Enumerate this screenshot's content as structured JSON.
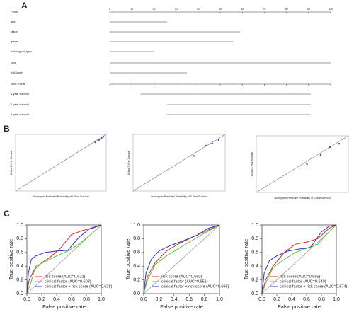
{
  "panel_labels": [
    "A",
    "B",
    "C"
  ],
  "chart_data": [
    {
      "type": "nomogram",
      "xlim": [
        0,
        100
      ],
      "xticks": [
        0,
        10,
        20,
        30,
        40,
        50,
        60,
        70,
        80,
        90,
        100
      ],
      "rows": [
        {
          "label": "Points",
          "range": [
            0,
            100
          ]
        },
        {
          "label": "age",
          "range": [
            0,
            26
          ]
        },
        {
          "label": "stage",
          "range": [
            0,
            59
          ]
        },
        {
          "label": "grade",
          "range": [
            0,
            56
          ]
        },
        {
          "label": "histological_type",
          "range": [
            0,
            20
          ]
        },
        {
          "label": "race",
          "range": [
            0,
            100
          ]
        },
        {
          "label": "riskScore",
          "range": [
            0,
            35
          ]
        },
        {
          "label": "Total Points",
          "range": [
            0,
            100
          ]
        },
        {
          "label": "1-year survival",
          "range": [
            14,
            91
          ]
        },
        {
          "label": "3-year survival",
          "range": [
            26,
            91
          ]
        },
        {
          "label": "5-year survival",
          "range": [
            26,
            91
          ]
        }
      ]
    },
    {
      "type": "scatter",
      "xlabel": "Nomogram-Predicted Probability of 1-Year Survival",
      "ylabel": "Actual 1-Year Survival",
      "xlim": [
        0,
        1
      ],
      "ylim": [
        0,
        1
      ],
      "color": "#3b4cc0",
      "x": [
        0.88,
        0.92,
        0.95,
        0.97
      ],
      "values": [
        0.86,
        0.9,
        0.94,
        0.96
      ]
    },
    {
      "type": "scatter",
      "xlabel": "Nomogram-Predicted Probability of 3-Year Survival",
      "ylabel": "Actual 3-Year Survival",
      "xlim": [
        0,
        1
      ],
      "ylim": [
        0,
        1
      ],
      "color": "#3b4cc0",
      "x": [
        0.66,
        0.79,
        0.86,
        0.93
      ],
      "values": [
        0.62,
        0.8,
        0.84,
        0.9
      ]
    },
    {
      "type": "scatter",
      "xlabel": "Nomogram-Predicted Probability of 5-Year Survival",
      "ylabel": "Actual 5-Year Survival",
      "xlim": [
        0,
        1
      ],
      "ylim": [
        0,
        1
      ],
      "color": "#3b4cc0",
      "x": [
        0.55,
        0.7,
        0.8,
        0.9
      ],
      "values": [
        0.5,
        0.66,
        0.8,
        0.86
      ]
    },
    {
      "type": "roc",
      "xlabel": "False positive rate",
      "ylabel": "True positive rate",
      "xlim": [
        0,
        1
      ],
      "ylim": [
        0,
        1
      ],
      "xticks": [
        {
          "value": 0,
          "label": "0.0"
        },
        {
          "value": 0.2,
          "label": "0.2"
        },
        {
          "value": 0.4,
          "label": "0.4"
        },
        {
          "value": 0.6,
          "label": "0.6"
        },
        {
          "value": 0.8,
          "label": "0.8"
        },
        {
          "value": 1,
          "label": "1.0"
        }
      ],
      "yticks": [
        {
          "value": 0,
          "label": "0.0"
        },
        {
          "value": 0.2,
          "label": "0.2"
        },
        {
          "value": 0.4,
          "label": "0.4"
        },
        {
          "value": 0.6,
          "label": "0.6"
        },
        {
          "value": 0.8,
          "label": "0.8"
        },
        {
          "value": 1,
          "label": "1.0"
        }
      ],
      "series": [
        {
          "name": "risk score (AUC=0.632)",
          "color": "#e8262a",
          "x": [
            0,
            0.03,
            0.1,
            0.2,
            0.3,
            0.45,
            0.6,
            0.75,
            0.9,
            1
          ],
          "values": [
            0,
            0.2,
            0.35,
            0.45,
            0.52,
            0.66,
            0.86,
            0.92,
            0.96,
            1
          ]
        },
        {
          "name": "clinical factor (AUC=0.603)",
          "color": "#4cc93c",
          "x": [
            0,
            0.05,
            0.12,
            0.25,
            0.4,
            0.55,
            0.7,
            0.85,
            1
          ],
          "values": [
            0,
            0.15,
            0.4,
            0.47,
            0.55,
            0.62,
            0.72,
            0.85,
            1
          ]
        },
        {
          "name": "clinical factor + risk score (AUC=0.628)",
          "color": "#2733c8",
          "x": [
            0,
            0.02,
            0.06,
            0.12,
            0.25,
            0.4,
            0.55,
            0.7,
            0.85,
            1
          ],
          "values": [
            0,
            0.3,
            0.5,
            0.55,
            0.6,
            0.62,
            0.63,
            0.82,
            0.95,
            1
          ]
        }
      ]
    },
    {
      "type": "roc",
      "xlabel": "False positive rate",
      "ylabel": "True positive rate",
      "xlim": [
        0,
        1
      ],
      "ylim": [
        0,
        1
      ],
      "xticks": [
        {
          "value": 0,
          "label": "0.0"
        },
        {
          "value": 0.2,
          "label": "0.2"
        },
        {
          "value": 0.4,
          "label": "0.4"
        },
        {
          "value": 0.6,
          "label": "0.6"
        },
        {
          "value": 0.8,
          "label": "0.8"
        },
        {
          "value": 1,
          "label": "1.0"
        }
      ],
      "yticks": [
        {
          "value": 0,
          "label": "0.0"
        },
        {
          "value": 0.2,
          "label": "0.2"
        },
        {
          "value": 0.4,
          "label": "0.4"
        },
        {
          "value": 0.6,
          "label": "0.6"
        },
        {
          "value": 0.8,
          "label": "0.8"
        },
        {
          "value": 1,
          "label": "1.0"
        }
      ],
      "series": [
        {
          "name": "risk score (AUC=0.650)",
          "color": "#e8262a",
          "x": [
            0,
            0.05,
            0.15,
            0.3,
            0.45,
            0.6,
            0.8,
            1
          ],
          "values": [
            0,
            0.25,
            0.45,
            0.62,
            0.72,
            0.8,
            0.9,
            1
          ]
        },
        {
          "name": "clinical factor (AUC=0.651)",
          "color": "#4cc93c",
          "x": [
            0,
            0.05,
            0.15,
            0.3,
            0.45,
            0.6,
            0.8,
            1
          ],
          "values": [
            0,
            0.2,
            0.42,
            0.55,
            0.65,
            0.75,
            0.88,
            1
          ]
        },
        {
          "name": "clinical factor + risk score (AUC=0.695)",
          "color": "#2733c8",
          "x": [
            0,
            0.03,
            0.1,
            0.2,
            0.35,
            0.5,
            0.7,
            0.85,
            1
          ],
          "values": [
            0,
            0.3,
            0.5,
            0.62,
            0.7,
            0.76,
            0.85,
            0.95,
            1
          ]
        }
      ]
    },
    {
      "type": "roc",
      "xlabel": "False positive rate",
      "ylabel": "True positive rate",
      "xlim": [
        0,
        1
      ],
      "ylim": [
        0,
        1
      ],
      "xticks": [
        {
          "value": 0,
          "label": "0.0"
        },
        {
          "value": 0.2,
          "label": "0.2"
        },
        {
          "value": 0.4,
          "label": "0.4"
        },
        {
          "value": 0.6,
          "label": "0.6"
        },
        {
          "value": 0.8,
          "label": "0.8"
        },
        {
          "value": 1,
          "label": "1.0"
        }
      ],
      "yticks": [
        {
          "value": 0,
          "label": "0.0"
        },
        {
          "value": 0.2,
          "label": "0.2"
        },
        {
          "value": 0.4,
          "label": "0.4"
        },
        {
          "value": 0.6,
          "label": "0.6"
        },
        {
          "value": 0.8,
          "label": "0.8"
        },
        {
          "value": 1,
          "label": "1.0"
        }
      ],
      "series": [
        {
          "name": "risk score (AUC=0.655)",
          "color": "#e8262a",
          "x": [
            0,
            0.05,
            0.15,
            0.3,
            0.45,
            0.6,
            0.75,
            0.9,
            1
          ],
          "values": [
            0,
            0.2,
            0.4,
            0.6,
            0.72,
            0.75,
            0.8,
            0.95,
            1
          ]
        },
        {
          "name": "clinical factor (AUC=0.640)",
          "color": "#4cc93c",
          "x": [
            0,
            0.05,
            0.15,
            0.3,
            0.45,
            0.6,
            0.75,
            0.9,
            1
          ],
          "values": [
            0,
            0.15,
            0.38,
            0.5,
            0.6,
            0.66,
            0.72,
            0.9,
            1
          ]
        },
        {
          "name": "clinical factor + risk score (AUC=0.674)",
          "color": "#2733c8",
          "x": [
            0,
            0.03,
            0.1,
            0.2,
            0.35,
            0.5,
            0.65,
            0.8,
            0.9,
            1
          ],
          "values": [
            0,
            0.3,
            0.48,
            0.55,
            0.62,
            0.65,
            0.67,
            0.9,
            0.98,
            1
          ]
        }
      ]
    }
  ]
}
